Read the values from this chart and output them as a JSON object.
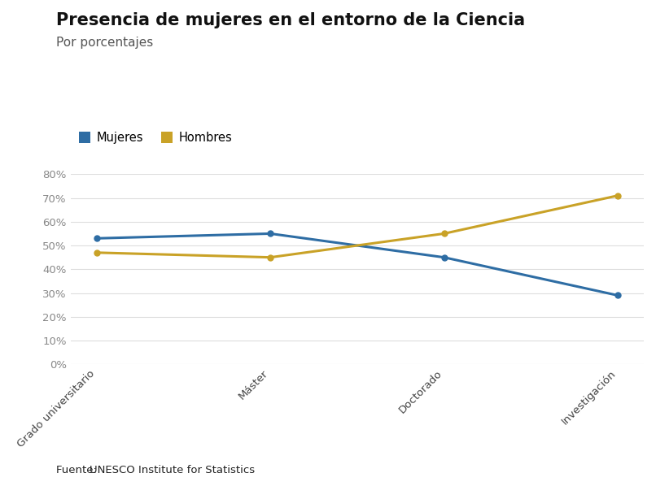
{
  "title": "Presencia de mujeres en el entorno de la Ciencia",
  "subtitle": "Por porcentajes",
  "categories": [
    "Grado universitario",
    "Máster",
    "Doctorado",
    "Investigación"
  ],
  "mujeres": [
    53,
    55,
    45,
    29
  ],
  "hombres": [
    47,
    45,
    55,
    71
  ],
  "mujeres_color": "#2e6da4",
  "hombres_color": "#c9a227",
  "ylim": [
    0,
    80
  ],
  "yticks": [
    0,
    10,
    20,
    30,
    40,
    50,
    60,
    70,
    80
  ],
  "legend_mujeres": "Mujeres",
  "legend_hombres": "Hombres",
  "source_plain": "Fuente: ",
  "source_link": "UNESCO Institute for Statistics",
  "background_color": "#ffffff",
  "grid_color": "#dddddd",
  "title_fontsize": 15,
  "subtitle_fontsize": 11,
  "tick_fontsize": 9.5,
  "legend_fontsize": 10.5,
  "source_fontsize": 9.5,
  "line_width": 2.2,
  "marker_size": 5
}
